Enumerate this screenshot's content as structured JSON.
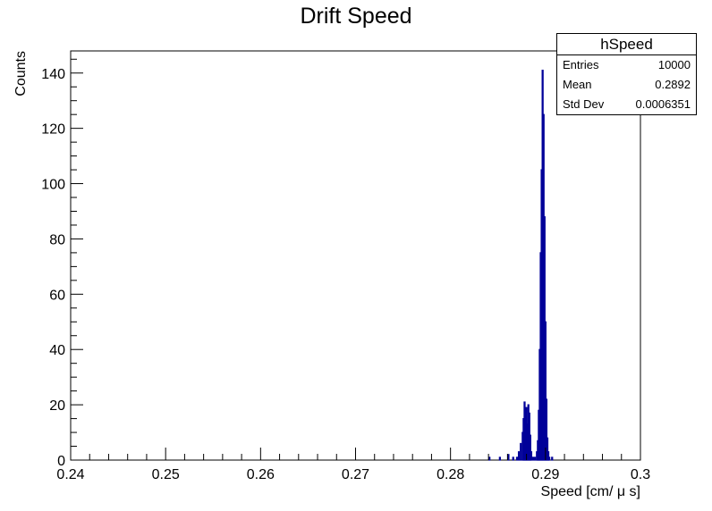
{
  "title": "Drift Speed",
  "stats": {
    "name": "hSpeed",
    "rows": [
      {
        "label": "Entries",
        "value": "10000"
      },
      {
        "label": "Mean",
        "value": "0.2892"
      },
      {
        "label": "Std Dev",
        "value": "0.0006351"
      }
    ]
  },
  "colors": {
    "histogram": "#000099",
    "axis": "#000000"
  },
  "chart_data": {
    "type": "bar",
    "title": "Drift Speed",
    "xlabel": "Speed [cm/ μ s]",
    "ylabel": "Counts",
    "xlim": [
      0.24,
      0.3
    ],
    "ylim": [
      0,
      148
    ],
    "x_ticks": [
      0.24,
      0.25,
      0.26,
      0.27,
      0.28,
      0.29,
      0.3
    ],
    "x_tick_labels": [
      "0.24",
      "0.25",
      "0.26",
      "0.27",
      "0.28",
      "0.29",
      "0.3"
    ],
    "y_ticks": [
      0,
      20,
      40,
      60,
      80,
      100,
      120,
      140
    ],
    "y_tick_labels": [
      "0",
      "20",
      "40",
      "60",
      "80",
      "100",
      "120",
      "140"
    ],
    "grid": false,
    "bins": [
      {
        "x": 0.2841,
        "y": 1
      },
      {
        "x": 0.2852,
        "y": 1
      },
      {
        "x": 0.2861,
        "y": 2
      },
      {
        "x": 0.2866,
        "y": 1
      },
      {
        "x": 0.287,
        "y": 1
      },
      {
        "x": 0.2872,
        "y": 3
      },
      {
        "x": 0.2874,
        "y": 6
      },
      {
        "x": 0.2876,
        "y": 10
      },
      {
        "x": 0.2877,
        "y": 15
      },
      {
        "x": 0.2878,
        "y": 21
      },
      {
        "x": 0.2879,
        "y": 17
      },
      {
        "x": 0.288,
        "y": 19
      },
      {
        "x": 0.2881,
        "y": 13
      },
      {
        "x": 0.2882,
        "y": 20
      },
      {
        "x": 0.2883,
        "y": 17
      },
      {
        "x": 0.2884,
        "y": 9
      },
      {
        "x": 0.2885,
        "y": 3
      },
      {
        "x": 0.2887,
        "y": 1
      },
      {
        "x": 0.2889,
        "y": 1
      },
      {
        "x": 0.2891,
        "y": 3
      },
      {
        "x": 0.2892,
        "y": 7
      },
      {
        "x": 0.2893,
        "y": 18
      },
      {
        "x": 0.2894,
        "y": 40
      },
      {
        "x": 0.2895,
        "y": 75
      },
      {
        "x": 0.2896,
        "y": 105
      },
      {
        "x": 0.2897,
        "y": 141
      },
      {
        "x": 0.2898,
        "y": 125
      },
      {
        "x": 0.2899,
        "y": 88
      },
      {
        "x": 0.29,
        "y": 50
      },
      {
        "x": 0.2901,
        "y": 22
      },
      {
        "x": 0.2902,
        "y": 8
      },
      {
        "x": 0.2903,
        "y": 3
      },
      {
        "x": 0.2904,
        "y": 1
      },
      {
        "x": 0.2907,
        "y": 1
      }
    ],
    "series": [
      {
        "name": "hSpeed"
      }
    ]
  }
}
